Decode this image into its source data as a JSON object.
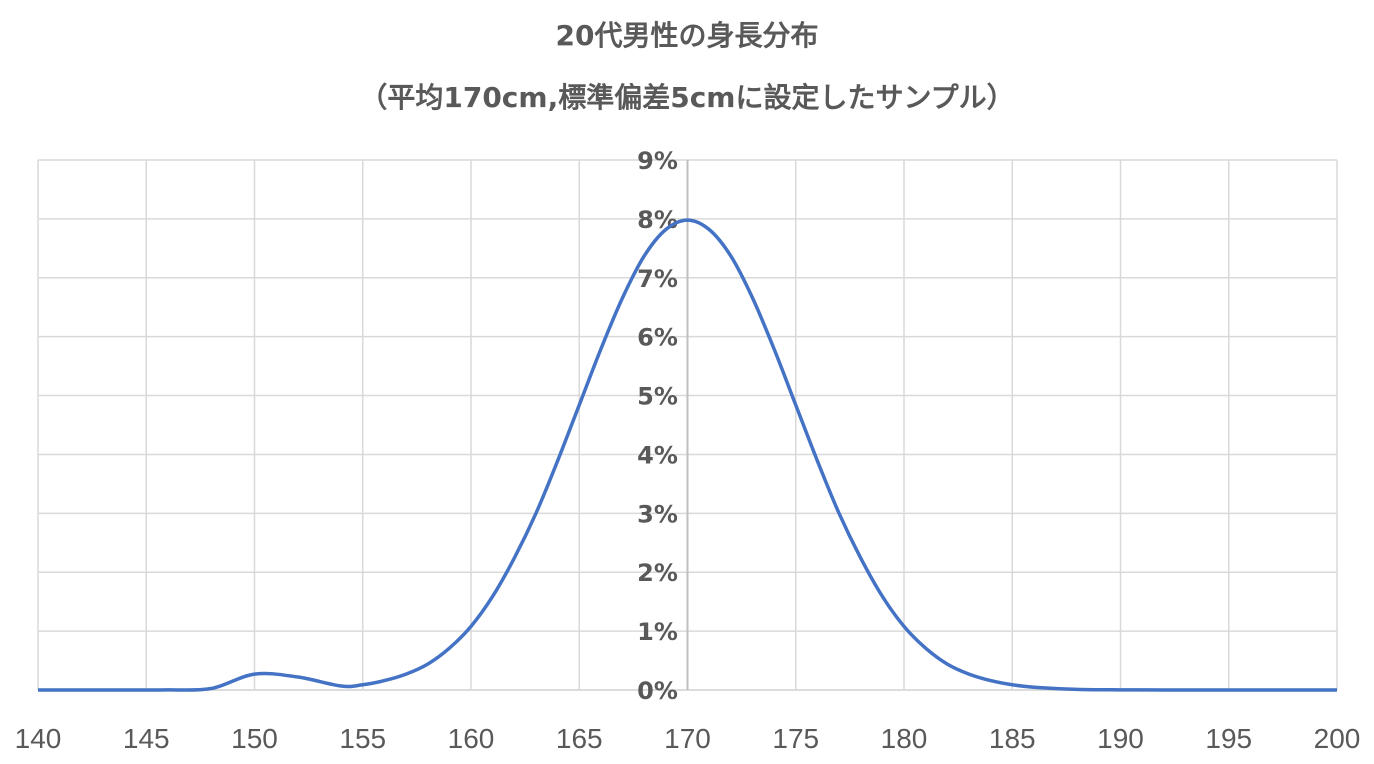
{
  "chart_data": {
    "type": "line",
    "title": "20代男性の身長分布",
    "subtitle": "（平均170cm,標準偏差5cmに設定したサンプル）",
    "xlim": [
      140,
      200
    ],
    "ylim": [
      0,
      0.09
    ],
    "x_ticks": [
      140,
      145,
      150,
      155,
      160,
      165,
      170,
      175,
      180,
      185,
      190,
      195,
      200
    ],
    "x_tick_labels": [
      "140",
      "145",
      "150",
      "155",
      "160",
      "165",
      "170",
      "175",
      "180",
      "185",
      "190",
      "195",
      "200"
    ],
    "y_ticks": [
      0,
      0.01,
      0.02,
      0.03,
      0.04,
      0.05,
      0.06,
      0.07,
      0.08,
      0.09
    ],
    "y_tick_labels": [
      "0%",
      "1%",
      "2%",
      "3%",
      "4%",
      "5%",
      "6%",
      "7%",
      "8%",
      "9%"
    ],
    "grid": true,
    "series": [
      {
        "color": "#4472c4",
        "x": [
          140,
          142,
          144,
          146,
          148,
          150,
          152,
          154,
          155,
          156,
          157,
          158,
          159,
          160,
          161,
          162,
          163,
          164,
          165,
          166,
          167,
          168,
          169,
          170,
          171,
          172,
          173,
          174,
          175,
          176,
          177,
          178,
          179,
          180,
          181,
          182,
          183,
          184,
          185,
          186,
          188,
          190,
          192,
          194,
          196,
          198,
          200
        ],
        "y": [
          1.2e-09,
          3.7e-08,
          9e-07,
          1.7e-05,
          0.00025,
          0.0027,
          0.0022,
          0.00067,
          0.00089,
          0.0016,
          0.0027,
          0.0044,
          0.0071,
          0.0108,
          0.0159,
          0.0224,
          0.03,
          0.0389,
          0.0484,
          0.0579,
          0.0666,
          0.0737,
          0.0782,
          0.0798,
          0.0782,
          0.0737,
          0.0666,
          0.0579,
          0.0484,
          0.0389,
          0.03,
          0.0224,
          0.0159,
          0.0108,
          0.0071,
          0.0044,
          0.0027,
          0.0016,
          0.00089,
          0.00047,
          0.00011,
          2.7e-05,
          4.9e-06,
          7.6e-07,
          1e-07,
          1.2e-08,
          1.2e-09
        ]
      }
    ]
  }
}
